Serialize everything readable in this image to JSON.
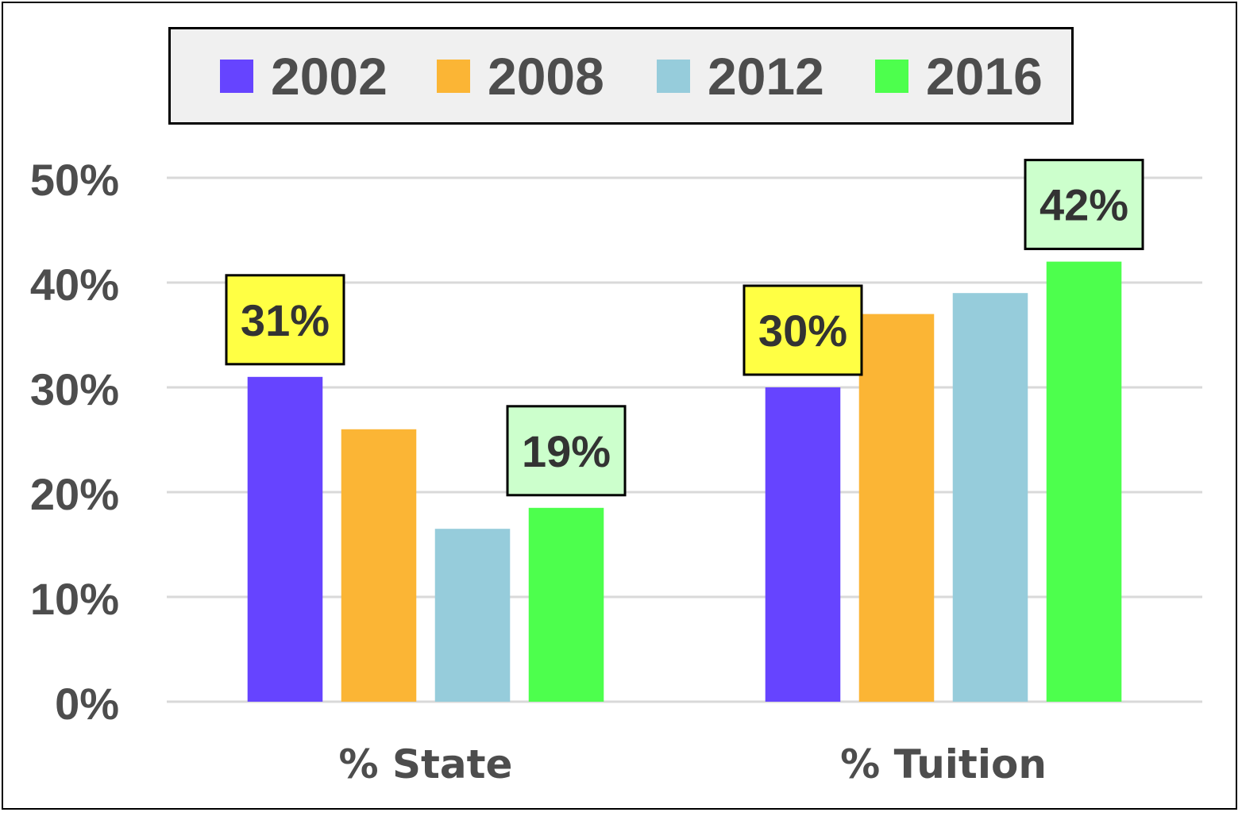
{
  "chart_data": {
    "type": "bar",
    "categories": [
      "% State",
      "% Tuition"
    ],
    "series": [
      {
        "name": "2002",
        "color": "#6644ff",
        "values": [
          31,
          30
        ]
      },
      {
        "name": "2008",
        "color": "#fbb535",
        "values": [
          26,
          37
        ]
      },
      {
        "name": "2012",
        "color": "#96ccdb",
        "values": [
          16.5,
          39
        ]
      },
      {
        "name": "2016",
        "color": "#4dff4d",
        "values": [
          18.5,
          42
        ]
      }
    ],
    "ylim": [
      0,
      50
    ],
    "yticks": [
      "0%",
      "10%",
      "20%",
      "30%",
      "40%",
      "50%"
    ],
    "grid": true,
    "legend": "top",
    "data_labels": [
      {
        "series": 0,
        "category": 0,
        "text": "31%",
        "bg": "#ffff44"
      },
      {
        "series": 3,
        "category": 0,
        "text": "19%",
        "bg": "#ccffcc"
      },
      {
        "series": 0,
        "category": 1,
        "text": "30%",
        "bg": "#ffff44"
      },
      {
        "series": 3,
        "category": 1,
        "text": "42%",
        "bg": "#ccffcc"
      }
    ]
  }
}
